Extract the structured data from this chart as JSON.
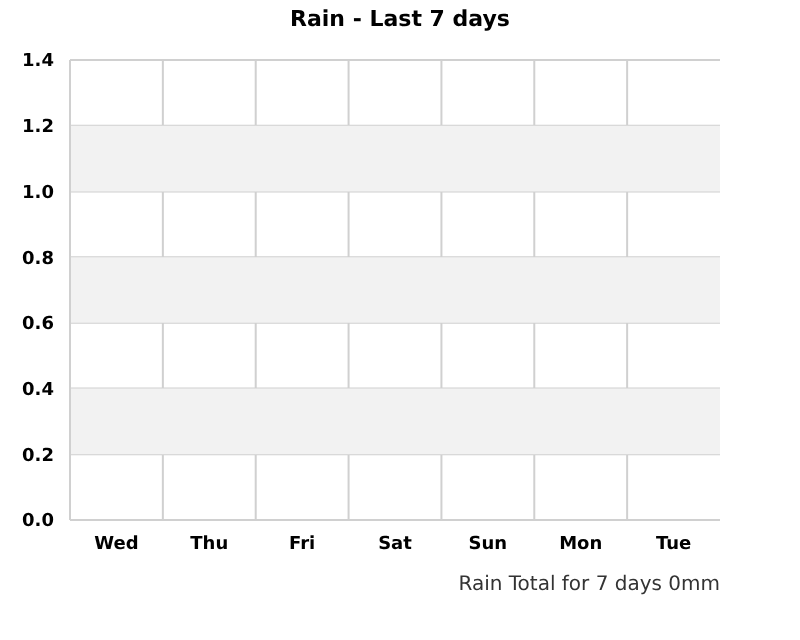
{
  "chart_data": {
    "type": "bar",
    "title": "Rain - Last 7 days",
    "categories": [
      "Wed",
      "Thu",
      "Fri",
      "Sat",
      "Sun",
      "Mon",
      "Tue"
    ],
    "values": [
      0,
      0,
      0,
      0,
      0,
      0,
      0
    ],
    "ylim": [
      0,
      1.4
    ],
    "yticks": [
      {
        "value": 0,
        "label": "0.0"
      },
      0.2,
      0.4,
      0.6,
      0.8,
      {
        "value": 1,
        "label": "1.0"
      },
      1.2,
      1.4
    ],
    "grid": true,
    "bands": [
      {
        "axis": "y",
        "from": 0.2,
        "to": 0.4,
        "color": "#f2f2f2"
      },
      {
        "axis": "y",
        "from": 0.6,
        "to": 0.8,
        "color": "#f2f2f2"
      },
      {
        "axis": "y",
        "from": 1.0,
        "to": 1.2,
        "color": "#f2f2f2"
      }
    ],
    "annotations": [
      "Rain Total for 7 days 0mm"
    ]
  }
}
